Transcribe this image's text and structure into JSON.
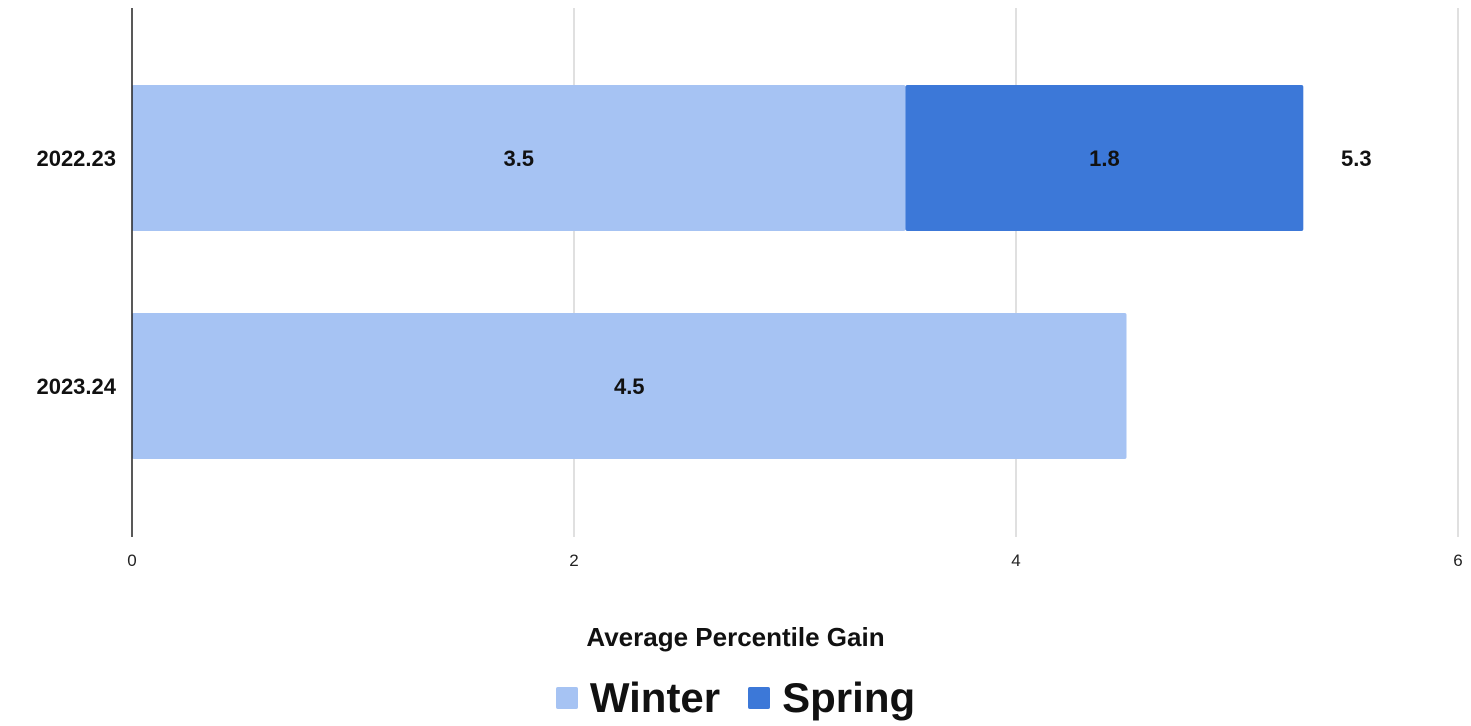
{
  "chart_data": {
    "type": "bar",
    "orientation": "horizontal",
    "stacked": true,
    "categories": [
      "2022.23",
      "2023.24"
    ],
    "series": [
      {
        "name": "Winter",
        "color": "#a6c3f3",
        "values": [
          3.5,
          4.5
        ]
      },
      {
        "name": "Spring",
        "color": "#3c78d8",
        "values": [
          1.8,
          null
        ]
      }
    ],
    "totals": [
      5.3,
      null
    ],
    "xlabel": "Average Percentile Gain",
    "xlim": [
      0,
      6
    ],
    "xticks": [
      "0",
      "2",
      "4",
      "6"
    ],
    "grid": "vertical",
    "legend_position": "bottom"
  }
}
